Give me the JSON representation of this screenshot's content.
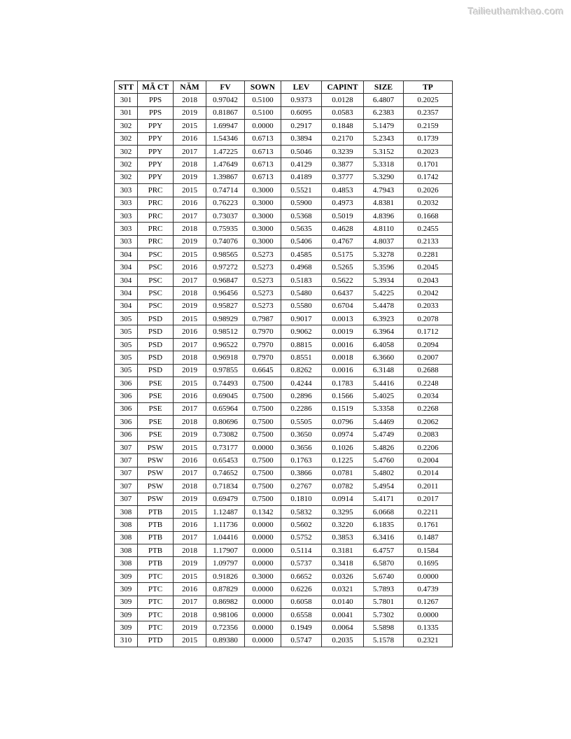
{
  "watermark": "Tailieuthamkhao.com",
  "table": {
    "columns": [
      "STT",
      "MÃ CT",
      "NĂM",
      "FV",
      "SOWN",
      "LEV",
      "CAPINT",
      "SIZE",
      "TP"
    ],
    "rows": [
      [
        "301",
        "PPS",
        "2018",
        "0.97042",
        "0.5100",
        "0.9373",
        "0.0128",
        "6.4807",
        "0.2025"
      ],
      [
        "301",
        "PPS",
        "2019",
        "0.81867",
        "0.5100",
        "0.6095",
        "0.0583",
        "6.2383",
        "0.2357"
      ],
      [
        "302",
        "PPY",
        "2015",
        "1.69947",
        "0.0000",
        "0.2917",
        "0.1848",
        "5.1479",
        "0.2159"
      ],
      [
        "302",
        "PPY",
        "2016",
        "1.54346",
        "0.6713",
        "0.3894",
        "0.2170",
        "5.2343",
        "0.1739"
      ],
      [
        "302",
        "PPY",
        "2017",
        "1.47225",
        "0.6713",
        "0.5046",
        "0.3239",
        "5.3152",
        "0.2023"
      ],
      [
        "302",
        "PPY",
        "2018",
        "1.47649",
        "0.6713",
        "0.4129",
        "0.3877",
        "5.3318",
        "0.1701"
      ],
      [
        "302",
        "PPY",
        "2019",
        "1.39867",
        "0.6713",
        "0.4189",
        "0.3777",
        "5.3290",
        "0.1742"
      ],
      [
        "303",
        "PRC",
        "2015",
        "0.74714",
        "0.3000",
        "0.5521",
        "0.4853",
        "4.7943",
        "0.2026"
      ],
      [
        "303",
        "PRC",
        "2016",
        "0.76223",
        "0.3000",
        "0.5900",
        "0.4973",
        "4.8381",
        "0.2032"
      ],
      [
        "303",
        "PRC",
        "2017",
        "0.73037",
        "0.3000",
        "0.5368",
        "0.5019",
        "4.8396",
        "0.1668"
      ],
      [
        "303",
        "PRC",
        "2018",
        "0.75935",
        "0.3000",
        "0.5635",
        "0.4628",
        "4.8110",
        "0.2455"
      ],
      [
        "303",
        "PRC",
        "2019",
        "0.74076",
        "0.3000",
        "0.5406",
        "0.4767",
        "4.8037",
        "0.2133"
      ],
      [
        "304",
        "PSC",
        "2015",
        "0.98565",
        "0.5273",
        "0.4585",
        "0.5175",
        "5.3278",
        "0.2281"
      ],
      [
        "304",
        "PSC",
        "2016",
        "0.97272",
        "0.5273",
        "0.4968",
        "0.5265",
        "5.3596",
        "0.2045"
      ],
      [
        "304",
        "PSC",
        "2017",
        "0.96847",
        "0.5273",
        "0.5183",
        "0.5622",
        "5.3934",
        "0.2043"
      ],
      [
        "304",
        "PSC",
        "2018",
        "0.96456",
        "0.5273",
        "0.5480",
        "0.6437",
        "5.4225",
        "0.2042"
      ],
      [
        "304",
        "PSC",
        "2019",
        "0.95827",
        "0.5273",
        "0.5580",
        "0.6704",
        "5.4478",
        "0.2033"
      ],
      [
        "305",
        "PSD",
        "2015",
        "0.98929",
        "0.7987",
        "0.9017",
        "0.0013",
        "6.3923",
        "0.2078"
      ],
      [
        "305",
        "PSD",
        "2016",
        "0.98512",
        "0.7970",
        "0.9062",
        "0.0019",
        "6.3964",
        "0.1712"
      ],
      [
        "305",
        "PSD",
        "2017",
        "0.96522",
        "0.7970",
        "0.8815",
        "0.0016",
        "6.4058",
        "0.2094"
      ],
      [
        "305",
        "PSD",
        "2018",
        "0.96918",
        "0.7970",
        "0.8551",
        "0.0018",
        "6.3660",
        "0.2007"
      ],
      [
        "305",
        "PSD",
        "2019",
        "0.97855",
        "0.6645",
        "0.8262",
        "0.0016",
        "6.3148",
        "0.2688"
      ],
      [
        "306",
        "PSE",
        "2015",
        "0.74493",
        "0.7500",
        "0.4244",
        "0.1783",
        "5.4416",
        "0.2248"
      ],
      [
        "306",
        "PSE",
        "2016",
        "0.69045",
        "0.7500",
        "0.2896",
        "0.1566",
        "5.4025",
        "0.2034"
      ],
      [
        "306",
        "PSE",
        "2017",
        "0.65964",
        "0.7500",
        "0.2286",
        "0.1519",
        "5.3358",
        "0.2268"
      ],
      [
        "306",
        "PSE",
        "2018",
        "0.80696",
        "0.7500",
        "0.5505",
        "0.0796",
        "5.4469",
        "0.2062"
      ],
      [
        "306",
        "PSE",
        "2019",
        "0.73082",
        "0.7500",
        "0.3650",
        "0.0974",
        "5.4749",
        "0.2083"
      ],
      [
        "307",
        "PSW",
        "2015",
        "0.73177",
        "0.0000",
        "0.3656",
        "0.1026",
        "5.4826",
        "0.2206"
      ],
      [
        "307",
        "PSW",
        "2016",
        "0.65453",
        "0.7500",
        "0.1763",
        "0.1225",
        "5.4760",
        "0.2004"
      ],
      [
        "307",
        "PSW",
        "2017",
        "0.74652",
        "0.7500",
        "0.3866",
        "0.0781",
        "5.4802",
        "0.2014"
      ],
      [
        "307",
        "PSW",
        "2018",
        "0.71834",
        "0.7500",
        "0.2767",
        "0.0782",
        "5.4954",
        "0.2011"
      ],
      [
        "307",
        "PSW",
        "2019",
        "0.69479",
        "0.7500",
        "0.1810",
        "0.0914",
        "5.4171",
        "0.2017"
      ],
      [
        "308",
        "PTB",
        "2015",
        "1.12487",
        "0.1342",
        "0.5832",
        "0.3295",
        "6.0668",
        "0.2211"
      ],
      [
        "308",
        "PTB",
        "2016",
        "1.11736",
        "0.0000",
        "0.5602",
        "0.3220",
        "6.1835",
        "0.1761"
      ],
      [
        "308",
        "PTB",
        "2017",
        "1.04416",
        "0.0000",
        "0.5752",
        "0.3853",
        "6.3416",
        "0.1487"
      ],
      [
        "308",
        "PTB",
        "2018",
        "1.17907",
        "0.0000",
        "0.5114",
        "0.3181",
        "6.4757",
        "0.1584"
      ],
      [
        "308",
        "PTB",
        "2019",
        "1.09797",
        "0.0000",
        "0.5737",
        "0.3418",
        "6.5870",
        "0.1695"
      ],
      [
        "309",
        "PTC",
        "2015",
        "0.91826",
        "0.3000",
        "0.6652",
        "0.0326",
        "5.6740",
        "0.0000"
      ],
      [
        "309",
        "PTC",
        "2016",
        "0.87829",
        "0.0000",
        "0.6226",
        "0.0321",
        "5.7893",
        "0.4739"
      ],
      [
        "309",
        "PTC",
        "2017",
        "0.86982",
        "0.0000",
        "0.6058",
        "0.0140",
        "5.7801",
        "0.1267"
      ],
      [
        "309",
        "PTC",
        "2018",
        "0.98106",
        "0.0000",
        "0.6558",
        "0.0041",
        "5.7302",
        "0.0000"
      ],
      [
        "309",
        "PTC",
        "2019",
        "0.72356",
        "0.0000",
        "0.1949",
        "0.0064",
        "5.5898",
        "0.1335"
      ],
      [
        "310",
        "PTD",
        "2015",
        "0.89380",
        "0.0000",
        "0.5747",
        "0.2035",
        "5.1578",
        "0.2321"
      ]
    ]
  }
}
